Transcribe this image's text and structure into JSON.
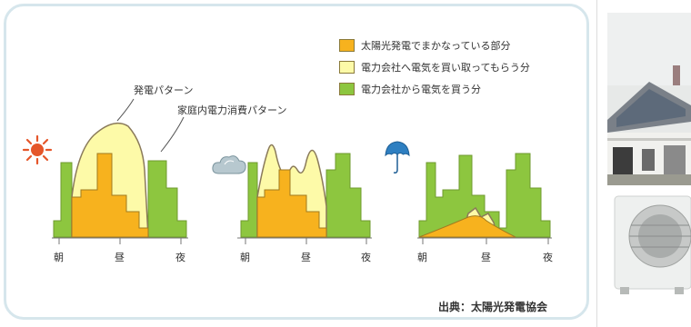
{
  "legend": [
    {
      "label": "太陽光発電でまかなっている部分",
      "color": "#f7b21e"
    },
    {
      "label": "電力会社へ電気を買い取ってもらう分",
      "color": "#fdfaa8"
    },
    {
      "label": "電力会社から電気を買う分",
      "color": "#8dc63f"
    }
  ],
  "annotations": {
    "generation_pattern": "発電パターン",
    "consumption_pattern": "家庭内電力消費パターン"
  },
  "weather_panels": [
    {
      "weather_icon": "sun-icon",
      "ticks": [
        "朝",
        "昼",
        "夜"
      ]
    },
    {
      "weather_icon": "cloud-icon",
      "ticks": [
        "朝",
        "昼",
        "夜"
      ]
    },
    {
      "weather_icon": "umbrella-icon",
      "ticks": [
        "朝",
        "昼",
        "夜"
      ]
    }
  ],
  "source": "出典：太陽光発電協会",
  "colors": {
    "panel_border": "#d6e6ec",
    "solar_covered": "#f7b21e",
    "sold_to_utility": "#fdfaa8",
    "bought_from_utility": "#8dc63f",
    "sun": "#e5562a",
    "cloud": "#9fb6bf",
    "umbrella": "#2e7fc1"
  }
}
